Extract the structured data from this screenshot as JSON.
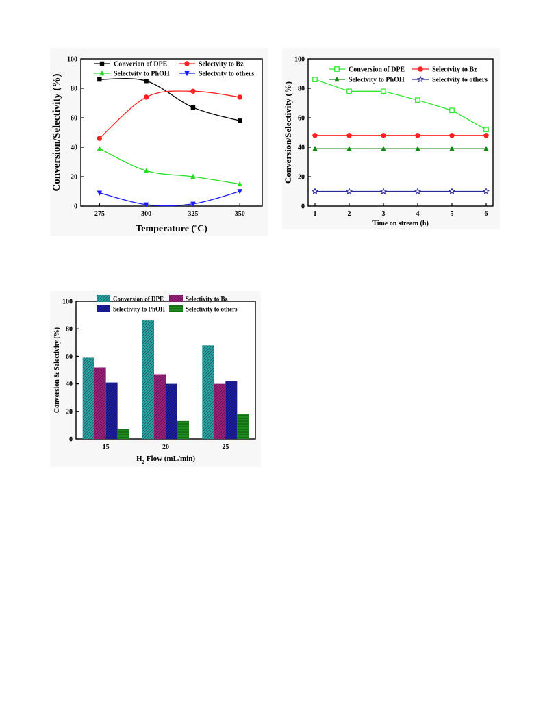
{
  "chart_data": [
    {
      "type": "line",
      "title": "",
      "xlabel": "Temperature",
      "xlabel_sup": "o",
      "xlabel_unit": "C",
      "ylabel": "Conversion/Selectivity (%)",
      "x": [
        275,
        300,
        325,
        350
      ],
      "xticks": [
        "275",
        "300",
        "325",
        "350"
      ],
      "xlim": [
        265,
        362
      ],
      "ylim": [
        0,
        100
      ],
      "yticks": [
        "0",
        "20",
        "40",
        "60",
        "80",
        "100"
      ],
      "legend_position": "top",
      "series": [
        {
          "name": "Converion of DPE",
          "color": "#000000",
          "marker": "square-filled",
          "values": [
            86,
            85,
            67,
            58
          ]
        },
        {
          "name": "Selectvity to Bz",
          "color": "#ff2020",
          "marker": "circle-filled",
          "values": [
            46,
            74,
            78,
            74
          ]
        },
        {
          "name": "Selectvity to PhOH",
          "color": "#22e022",
          "marker": "triangle-up-filled",
          "values": [
            39,
            24,
            20,
            15
          ]
        },
        {
          "name": "Selectvity to others",
          "color": "#1a1aff",
          "marker": "triangle-down-filled",
          "values": [
            9,
            1,
            1.5,
            10
          ]
        }
      ]
    },
    {
      "type": "line",
      "title": "",
      "xlabel": "Time on stream (h)",
      "ylabel": "Conversion/Selectivity (%)",
      "x": [
        1,
        2,
        3,
        4,
        5,
        6
      ],
      "xticks": [
        "1",
        "2",
        "3",
        "4",
        "5",
        "6"
      ],
      "xlim": [
        0.8,
        6.2
      ],
      "ylim": [
        0,
        100
      ],
      "yticks": [
        "0",
        "20",
        "40",
        "60",
        "80",
        "100"
      ],
      "legend_position": "top",
      "series": [
        {
          "name": "Conversion of DPE",
          "color": "#2ee82e",
          "marker": "square-open",
          "values": [
            86,
            78,
            78,
            72,
            65,
            52
          ]
        },
        {
          "name": "Selectvity to Bz",
          "color": "#ff2020",
          "marker": "circle-filled",
          "values": [
            48,
            48,
            48,
            48,
            48,
            48
          ]
        },
        {
          "name": "Selectvity to PhOH",
          "color": "#118811",
          "marker": "triangle-up-filled",
          "values": [
            39,
            39,
            39,
            39,
            39,
            39
          ]
        },
        {
          "name": "Selectvity to others",
          "color": "#2a2a9a",
          "marker": "star-open",
          "values": [
            10,
            10,
            10,
            10,
            10,
            10
          ]
        }
      ]
    },
    {
      "type": "bar",
      "title": "",
      "xlabel": "Flow (mL/min)",
      "xlabel_prefix": "H",
      "xlabel_sub": "2",
      "ylabel": "Conversion & Selectivity (%)",
      "categories": [
        "15",
        "20",
        "25"
      ],
      "ylim": [
        0,
        100
      ],
      "yticks": [
        "0",
        "20",
        "40",
        "60",
        "80",
        "100"
      ],
      "legend_position": "top",
      "series": [
        {
          "name": "Conversion of DPE",
          "color": "#2aa7a7",
          "values": [
            59,
            86,
            68
          ]
        },
        {
          "name": "Selectivity to Bz",
          "color": "#a1217f",
          "values": [
            52,
            47,
            40
          ]
        },
        {
          "name": "Selectivity to PhOH",
          "color": "#1f1fa8",
          "values": [
            41,
            40,
            42
          ]
        },
        {
          "name": "Selectivity to others",
          "color": "#1c8a1c",
          "values": [
            7,
            13,
            18
          ]
        }
      ]
    }
  ]
}
